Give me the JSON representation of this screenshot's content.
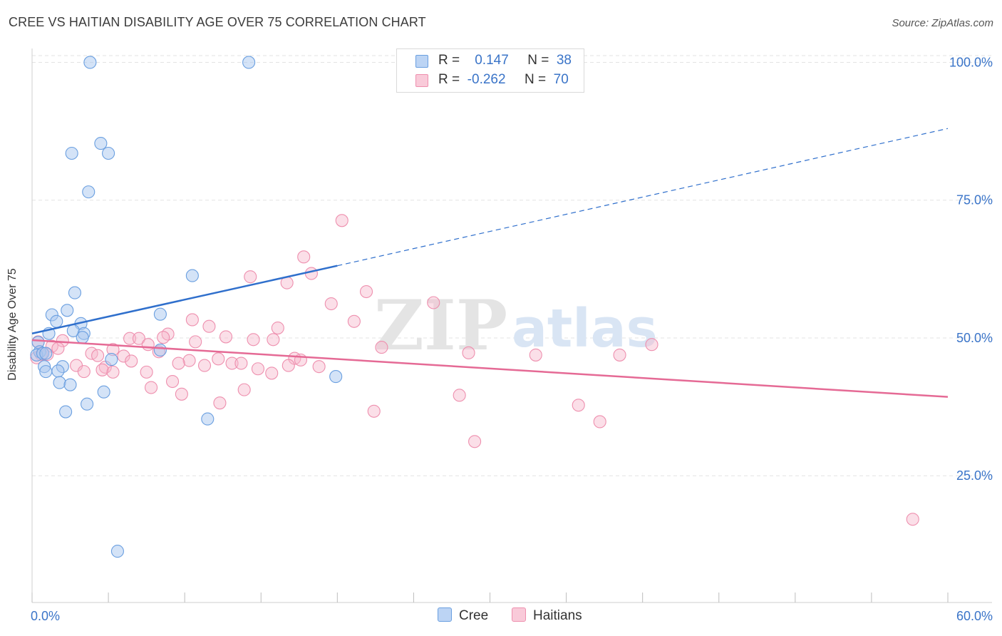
{
  "header": {
    "title": "CREE VS HAITIAN DISABILITY AGE OVER 75 CORRELATION CHART",
    "source_label": "Source: ZipAtlas.com"
  },
  "legend": {
    "cree": {
      "r_label": "R =",
      "r_value": "0.147",
      "n_label": "N =",
      "n_value": "38"
    },
    "haitians": {
      "r_label": "R =",
      "r_value": "-0.262",
      "n_label": "N =",
      "n_value": "70"
    }
  },
  "bottom_legend": {
    "cree": "Cree",
    "haitians": "Haitians"
  },
  "watermark": {
    "zip": "ZIP",
    "atlas": "atlas"
  },
  "colors": {
    "cree_fill": "#a9c8f0",
    "cree_stroke": "#6a9fe0",
    "cree_line": "#2f6fcc",
    "haitian_fill": "#f6b8cb",
    "haitian_stroke": "#ee8fae",
    "haitian_line": "#e56a95",
    "tick_text": "#3a74c8",
    "grid": "#e3e3e3"
  },
  "chart_data": {
    "type": "scatter",
    "title": "CREE VS HAITIAN DISABILITY AGE OVER 75 CORRELATION CHART",
    "xlabel": "",
    "ylabel": "Disability Age Over 75",
    "xlim": [
      0,
      60
    ],
    "ylim": [
      2,
      102
    ],
    "x_tick_labels": [
      "0.0%",
      "60.0%"
    ],
    "y_ticks": [
      25,
      50,
      75,
      100
    ],
    "y_tick_labels": [
      "25.0%",
      "50.0%",
      "75.0%",
      "100.0%"
    ],
    "grid": true,
    "series": [
      {
        "name": "Cree",
        "r": 0.147,
        "n": 38,
        "trend": {
          "solid_from": [
            0,
            50.8
          ],
          "solid_to": [
            20,
            63.1
          ],
          "dashed_to": [
            60,
            88
          ]
        },
        "points": [
          [
            3.8,
            100
          ],
          [
            14.2,
            100
          ],
          [
            4.5,
            85.3
          ],
          [
            2.6,
            83.5
          ],
          [
            5.0,
            83.5
          ],
          [
            3.7,
            76.5
          ],
          [
            10.5,
            61.3
          ],
          [
            2.8,
            58.2
          ],
          [
            2.3,
            55.0
          ],
          [
            1.3,
            54.2
          ],
          [
            8.4,
            54.3
          ],
          [
            1.6,
            53.0
          ],
          [
            3.2,
            52.6
          ],
          [
            2.7,
            51.3
          ],
          [
            1.1,
            50.8
          ],
          [
            3.4,
            50.8
          ],
          [
            0.4,
            49.2
          ],
          [
            3.3,
            50.1
          ],
          [
            0.5,
            47.5
          ],
          [
            0.3,
            46.9
          ],
          [
            0.7,
            47.2
          ],
          [
            0.9,
            47.2
          ],
          [
            8.4,
            47.8
          ],
          [
            5.2,
            46.1
          ],
          [
            2.0,
            44.8
          ],
          [
            0.8,
            44.8
          ],
          [
            0.9,
            43.9
          ],
          [
            1.7,
            44.0
          ],
          [
            19.9,
            43.0
          ],
          [
            1.8,
            41.9
          ],
          [
            2.5,
            41.5
          ],
          [
            4.7,
            40.2
          ],
          [
            3.6,
            38.0
          ],
          [
            2.2,
            36.6
          ],
          [
            11.5,
            35.3
          ],
          [
            5.6,
            11.3
          ]
        ]
      },
      {
        "name": "Haitians",
        "r": -0.262,
        "n": 70,
        "trend": {
          "from": [
            0,
            49.6
          ],
          "to": [
            60,
            39.3
          ]
        },
        "points": [
          [
            20.3,
            71.3
          ],
          [
            17.8,
            64.7
          ],
          [
            18.3,
            61.7
          ],
          [
            14.3,
            61.1
          ],
          [
            16.7,
            60.0
          ],
          [
            21.9,
            58.4
          ],
          [
            26.3,
            56.4
          ],
          [
            19.6,
            56.2
          ],
          [
            10.5,
            53.3
          ],
          [
            21.1,
            53.0
          ],
          [
            11.6,
            52.1
          ],
          [
            16.1,
            51.8
          ],
          [
            8.9,
            50.7
          ],
          [
            12.7,
            50.2
          ],
          [
            8.6,
            50.1
          ],
          [
            6.4,
            49.9
          ],
          [
            7.0,
            49.9
          ],
          [
            14.5,
            49.7
          ],
          [
            15.8,
            49.7
          ],
          [
            2.0,
            49.5
          ],
          [
            0.4,
            49.3
          ],
          [
            10.7,
            49.3
          ],
          [
            7.6,
            48.8
          ],
          [
            1.3,
            48.5
          ],
          [
            22.9,
            48.3
          ],
          [
            40.6,
            48.8
          ],
          [
            1.7,
            48.1
          ],
          [
            5.3,
            47.9
          ],
          [
            8.3,
            47.5
          ],
          [
            28.6,
            47.3
          ],
          [
            0.6,
            47.0
          ],
          [
            1.0,
            47.0
          ],
          [
            3.9,
            47.2
          ],
          [
            4.3,
            46.8
          ],
          [
            0.3,
            46.4
          ],
          [
            6.0,
            46.7
          ],
          [
            33.0,
            46.9
          ],
          [
            38.5,
            46.9
          ],
          [
            12.2,
            46.2
          ],
          [
            17.2,
            46.3
          ],
          [
            17.6,
            46.0
          ],
          [
            10.3,
            45.9
          ],
          [
            6.5,
            45.8
          ],
          [
            9.6,
            45.4
          ],
          [
            13.1,
            45.4
          ],
          [
            13.7,
            45.4
          ],
          [
            11.3,
            45.0
          ],
          [
            2.9,
            45.0
          ],
          [
            16.8,
            45.0
          ],
          [
            18.8,
            44.8
          ],
          [
            4.8,
            44.7
          ],
          [
            4.6,
            44.2
          ],
          [
            14.8,
            44.4
          ],
          [
            3.4,
            43.9
          ],
          [
            5.3,
            43.8
          ],
          [
            7.5,
            43.8
          ],
          [
            15.7,
            43.6
          ],
          [
            9.2,
            42.1
          ],
          [
            7.8,
            41.0
          ],
          [
            13.9,
            40.6
          ],
          [
            9.8,
            39.8
          ],
          [
            28.0,
            39.6
          ],
          [
            12.3,
            38.2
          ],
          [
            35.8,
            37.8
          ],
          [
            22.4,
            36.7
          ],
          [
            37.2,
            34.8
          ],
          [
            29.0,
            31.2
          ],
          [
            57.7,
            17.1
          ]
        ]
      }
    ]
  }
}
